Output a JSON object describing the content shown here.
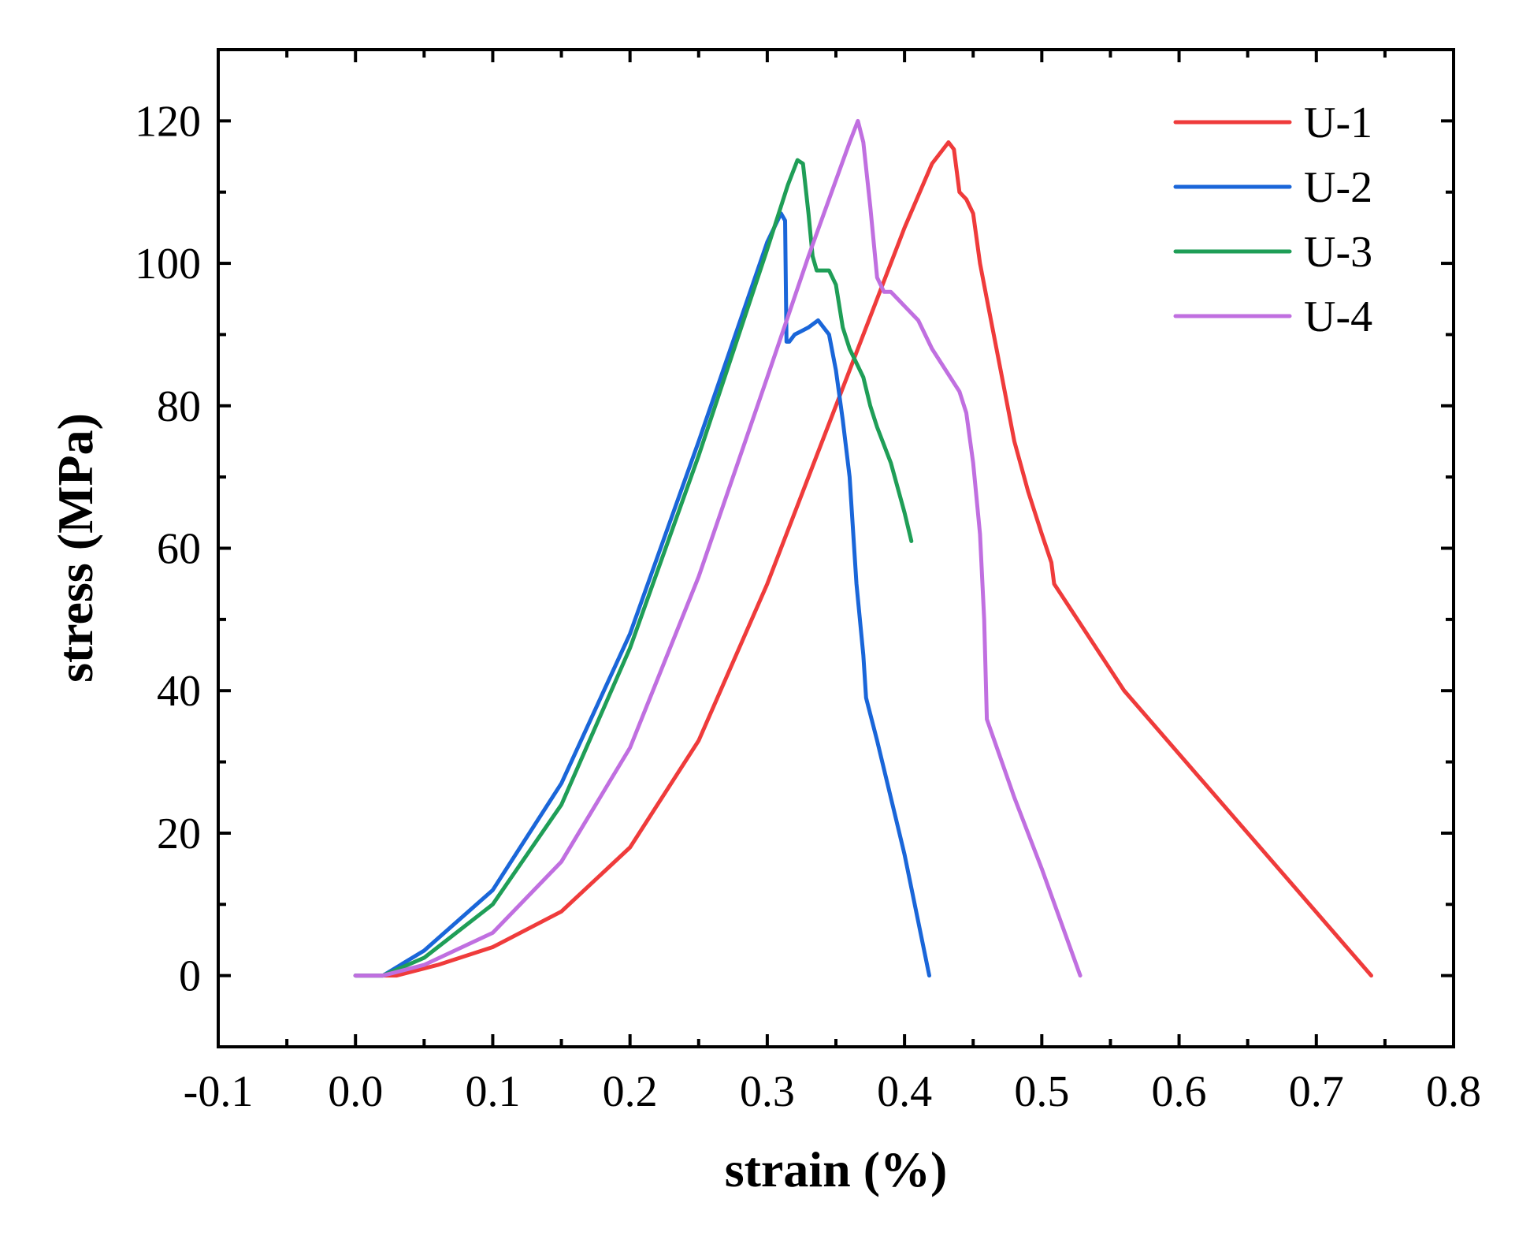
{
  "chart_data": {
    "type": "line",
    "title": "",
    "xlabel": "strain (%)",
    "ylabel": "stress (MPa)",
    "xlim": [
      -0.1,
      0.8
    ],
    "ylim": [
      -10,
      130
    ],
    "xticks": [
      -0.1,
      0.0,
      0.1,
      0.2,
      0.3,
      0.4,
      0.5,
      0.6,
      0.7,
      0.8
    ],
    "xtick_labels": [
      "-0.1",
      "0.0",
      "0.1",
      "0.2",
      "0.3",
      "0.4",
      "0.5",
      "0.6",
      "0.7",
      "0.8"
    ],
    "yticks": [
      0,
      20,
      40,
      60,
      80,
      100,
      120
    ],
    "ytick_labels": [
      "0",
      "20",
      "40",
      "60",
      "80",
      "100",
      "120"
    ],
    "grid": false,
    "legend_position": "top-right",
    "series": [
      {
        "name": "U-1",
        "color": "#ef3b3b",
        "points": [
          [
            0,
            0
          ],
          [
            0.03,
            0
          ],
          [
            0.06,
            1.5
          ],
          [
            0.1,
            4
          ],
          [
            0.15,
            9
          ],
          [
            0.2,
            18
          ],
          [
            0.25,
            33
          ],
          [
            0.3,
            55
          ],
          [
            0.35,
            80
          ],
          [
            0.4,
            105
          ],
          [
            0.42,
            114
          ],
          [
            0.432,
            117
          ],
          [
            0.436,
            116
          ],
          [
            0.44,
            110
          ],
          [
            0.445,
            109
          ],
          [
            0.45,
            107
          ],
          [
            0.455,
            100
          ],
          [
            0.46,
            95
          ],
          [
            0.47,
            85
          ],
          [
            0.48,
            75
          ],
          [
            0.49,
            68
          ],
          [
            0.5,
            62
          ],
          [
            0.507,
            58
          ],
          [
            0.509,
            55
          ],
          [
            0.56,
            40
          ],
          [
            0.65,
            20
          ],
          [
            0.74,
            0
          ]
        ]
      },
      {
        "name": "U-2",
        "color": "#1a66d9",
        "points": [
          [
            0,
            0
          ],
          [
            0.02,
            0
          ],
          [
            0.05,
            3.5
          ],
          [
            0.1,
            12
          ],
          [
            0.15,
            27
          ],
          [
            0.2,
            48
          ],
          [
            0.25,
            75
          ],
          [
            0.3,
            103
          ],
          [
            0.31,
            107
          ],
          [
            0.313,
            106
          ],
          [
            0.314,
            89
          ],
          [
            0.316,
            89
          ],
          [
            0.32,
            90
          ],
          [
            0.33,
            91
          ],
          [
            0.337,
            92
          ],
          [
            0.345,
            90
          ],
          [
            0.35,
            85
          ],
          [
            0.355,
            78
          ],
          [
            0.36,
            70
          ],
          [
            0.365,
            55
          ],
          [
            0.37,
            45
          ],
          [
            0.372,
            39
          ],
          [
            0.38,
            33
          ],
          [
            0.4,
            17
          ],
          [
            0.418,
            0
          ]
        ]
      },
      {
        "name": "U-3",
        "color": "#1f9e57",
        "points": [
          [
            0,
            0
          ],
          [
            0.02,
            0
          ],
          [
            0.05,
            2.5
          ],
          [
            0.1,
            10
          ],
          [
            0.15,
            24
          ],
          [
            0.2,
            46
          ],
          [
            0.25,
            73
          ],
          [
            0.3,
            102
          ],
          [
            0.315,
            111
          ],
          [
            0.322,
            114.5
          ],
          [
            0.326,
            114
          ],
          [
            0.33,
            107
          ],
          [
            0.333,
            101
          ],
          [
            0.336,
            99
          ],
          [
            0.345,
            99
          ],
          [
            0.35,
            97
          ],
          [
            0.355,
            91
          ],
          [
            0.36,
            88
          ],
          [
            0.365,
            86
          ],
          [
            0.37,
            84
          ],
          [
            0.375,
            80
          ],
          [
            0.38,
            77
          ],
          [
            0.39,
            72
          ],
          [
            0.4,
            65
          ],
          [
            0.405,
            61
          ]
        ]
      },
      {
        "name": "U-4",
        "color": "#c06fe0",
        "points": [
          [
            0,
            0
          ],
          [
            0.02,
            0
          ],
          [
            0.05,
            1.5
          ],
          [
            0.1,
            6
          ],
          [
            0.15,
            16
          ],
          [
            0.2,
            32
          ],
          [
            0.25,
            56
          ],
          [
            0.3,
            84
          ],
          [
            0.33,
            101
          ],
          [
            0.36,
            117
          ],
          [
            0.366,
            120
          ],
          [
            0.37,
            117
          ],
          [
            0.375,
            108
          ],
          [
            0.38,
            98
          ],
          [
            0.385,
            96
          ],
          [
            0.39,
            96
          ],
          [
            0.4,
            94
          ],
          [
            0.41,
            92
          ],
          [
            0.42,
            88
          ],
          [
            0.43,
            85
          ],
          [
            0.44,
            82
          ],
          [
            0.445,
            79
          ],
          [
            0.45,
            72
          ],
          [
            0.455,
            62
          ],
          [
            0.458,
            50
          ],
          [
            0.46,
            36
          ],
          [
            0.48,
            25
          ],
          [
            0.5,
            15
          ],
          [
            0.528,
            0
          ]
        ]
      }
    ]
  }
}
